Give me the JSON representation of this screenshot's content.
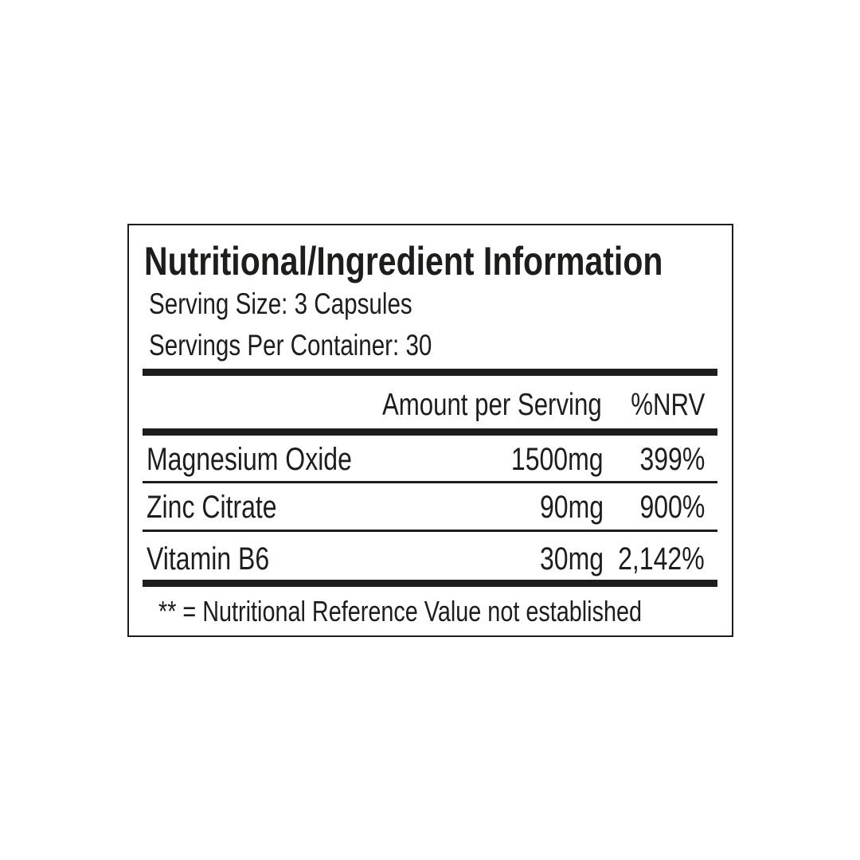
{
  "label": {
    "title": "Nutritional/Ingredient Information",
    "serving_size": "Serving Size: 3 Capsules",
    "servings_per_container": "Servings Per Container: 30",
    "columns": {
      "amount": "Amount per Serving",
      "nrv": "%NRV"
    },
    "rows": [
      {
        "name": "Magnesium Oxide",
        "amount": "1500mg",
        "nrv": "399%"
      },
      {
        "name": "Zinc Citrate",
        "amount": "90mg",
        "nrv": "900%"
      },
      {
        "name": "Vitamin B6",
        "amount": "30mg",
        "nrv": "2,142%"
      }
    ],
    "footnote": "** = Nutritional Reference Value not established"
  }
}
